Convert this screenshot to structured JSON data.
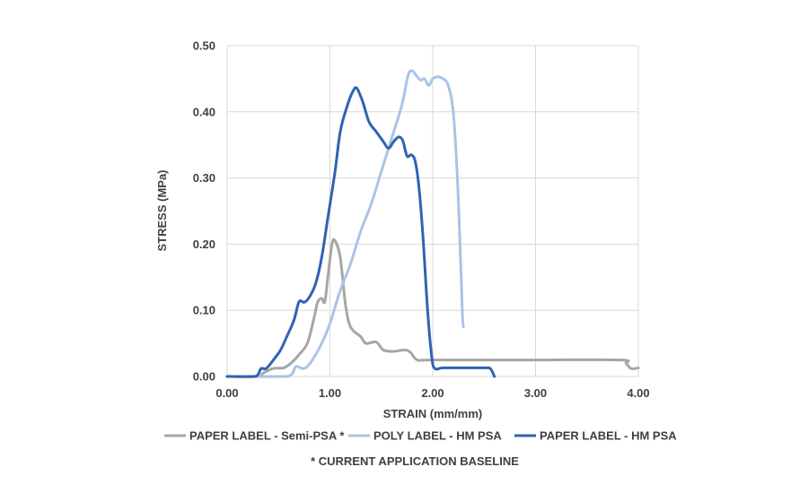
{
  "chart_data": {
    "type": "line",
    "title": "",
    "xlabel": "STRAIN (mm/mm)",
    "ylabel": "STRESS (MPa)",
    "xlim": [
      0,
      4
    ],
    "ylim": [
      0,
      0.5
    ],
    "xticks": [
      0,
      1,
      2,
      3,
      4
    ],
    "yticks": [
      0,
      0.1,
      0.2,
      0.3,
      0.4,
      0.5
    ],
    "x_tick_labels": [
      "0.00",
      "1.00",
      "2.00",
      "3.00",
      "4.00"
    ],
    "y_tick_labels": [
      "0.00",
      "0.10",
      "0.20",
      "0.30",
      "0.40",
      "0.50"
    ],
    "grid": true,
    "legend_position": "bottom",
    "footnote": "* CURRENT APPLICATION  BASELINE",
    "series": [
      {
        "name": "PAPER LABEL - Semi-PSA *",
        "color": "#a6a6a6",
        "points": [
          [
            0,
            0
          ],
          [
            0.3,
            0
          ],
          [
            0.35,
            0.005
          ],
          [
            0.45,
            0.012
          ],
          [
            0.55,
            0.013
          ],
          [
            0.62,
            0.02
          ],
          [
            0.7,
            0.033
          ],
          [
            0.78,
            0.05
          ],
          [
            0.84,
            0.085
          ],
          [
            0.88,
            0.112
          ],
          [
            0.92,
            0.118
          ],
          [
            0.95,
            0.113
          ],
          [
            0.98,
            0.15
          ],
          [
            1.02,
            0.2
          ],
          [
            1.05,
            0.205
          ],
          [
            1.1,
            0.18
          ],
          [
            1.15,
            0.11
          ],
          [
            1.2,
            0.075
          ],
          [
            1.3,
            0.06
          ],
          [
            1.35,
            0.05
          ],
          [
            1.45,
            0.052
          ],
          [
            1.52,
            0.04
          ],
          [
            1.62,
            0.038
          ],
          [
            1.72,
            0.04
          ],
          [
            1.78,
            0.037
          ],
          [
            1.85,
            0.025
          ],
          [
            2.0,
            0.025
          ],
          [
            3.0,
            0.025
          ],
          [
            3.83,
            0.025
          ],
          [
            3.88,
            0.02
          ],
          [
            3.93,
            0.012
          ],
          [
            4.0,
            0.013
          ]
        ]
      },
      {
        "name": "POLY LABEL - HM PSA",
        "color": "#a9c4e6",
        "points": [
          [
            0,
            0
          ],
          [
            0.5,
            0
          ],
          [
            0.62,
            0.002
          ],
          [
            0.67,
            0.015
          ],
          [
            0.73,
            0.012
          ],
          [
            0.78,
            0.015
          ],
          [
            0.85,
            0.03
          ],
          [
            0.92,
            0.05
          ],
          [
            1.0,
            0.08
          ],
          [
            1.1,
            0.13
          ],
          [
            1.2,
            0.17
          ],
          [
            1.3,
            0.22
          ],
          [
            1.4,
            0.26
          ],
          [
            1.5,
            0.31
          ],
          [
            1.6,
            0.36
          ],
          [
            1.7,
            0.41
          ],
          [
            1.76,
            0.455
          ],
          [
            1.8,
            0.462
          ],
          [
            1.84,
            0.455
          ],
          [
            1.88,
            0.448
          ],
          [
            1.92,
            0.45
          ],
          [
            1.96,
            0.44
          ],
          [
            2.0,
            0.45
          ],
          [
            2.05,
            0.453
          ],
          [
            2.1,
            0.45
          ],
          [
            2.15,
            0.44
          ],
          [
            2.2,
            0.4
          ],
          [
            2.24,
            0.3
          ],
          [
            2.27,
            0.18
          ],
          [
            2.29,
            0.09
          ],
          [
            2.3,
            0.075
          ]
        ]
      },
      {
        "name": "PAPER LABEL - HM PSA",
        "color": "#2f63b3",
        "points": [
          [
            0,
            0
          ],
          [
            0.25,
            0
          ],
          [
            0.3,
            0.003
          ],
          [
            0.33,
            0.012
          ],
          [
            0.38,
            0.012
          ],
          [
            0.45,
            0.025
          ],
          [
            0.52,
            0.04
          ],
          [
            0.58,
            0.06
          ],
          [
            0.65,
            0.085
          ],
          [
            0.7,
            0.113
          ],
          [
            0.75,
            0.112
          ],
          [
            0.8,
            0.12
          ],
          [
            0.86,
            0.14
          ],
          [
            0.92,
            0.18
          ],
          [
            0.98,
            0.24
          ],
          [
            1.05,
            0.31
          ],
          [
            1.1,
            0.37
          ],
          [
            1.17,
            0.41
          ],
          [
            1.22,
            0.43
          ],
          [
            1.26,
            0.436
          ],
          [
            1.32,
            0.415
          ],
          [
            1.38,
            0.385
          ],
          [
            1.45,
            0.37
          ],
          [
            1.52,
            0.355
          ],
          [
            1.57,
            0.345
          ],
          [
            1.62,
            0.355
          ],
          [
            1.67,
            0.362
          ],
          [
            1.71,
            0.356
          ],
          [
            1.75,
            0.333
          ],
          [
            1.79,
            0.335
          ],
          [
            1.83,
            0.325
          ],
          [
            1.87,
            0.28
          ],
          [
            1.91,
            0.2
          ],
          [
            1.95,
            0.1
          ],
          [
            1.99,
            0.03
          ],
          [
            2.02,
            0.012
          ],
          [
            2.1,
            0.013
          ],
          [
            2.3,
            0.013
          ],
          [
            2.5,
            0.013
          ],
          [
            2.56,
            0.012
          ],
          [
            2.6,
            0.0
          ]
        ]
      }
    ]
  }
}
